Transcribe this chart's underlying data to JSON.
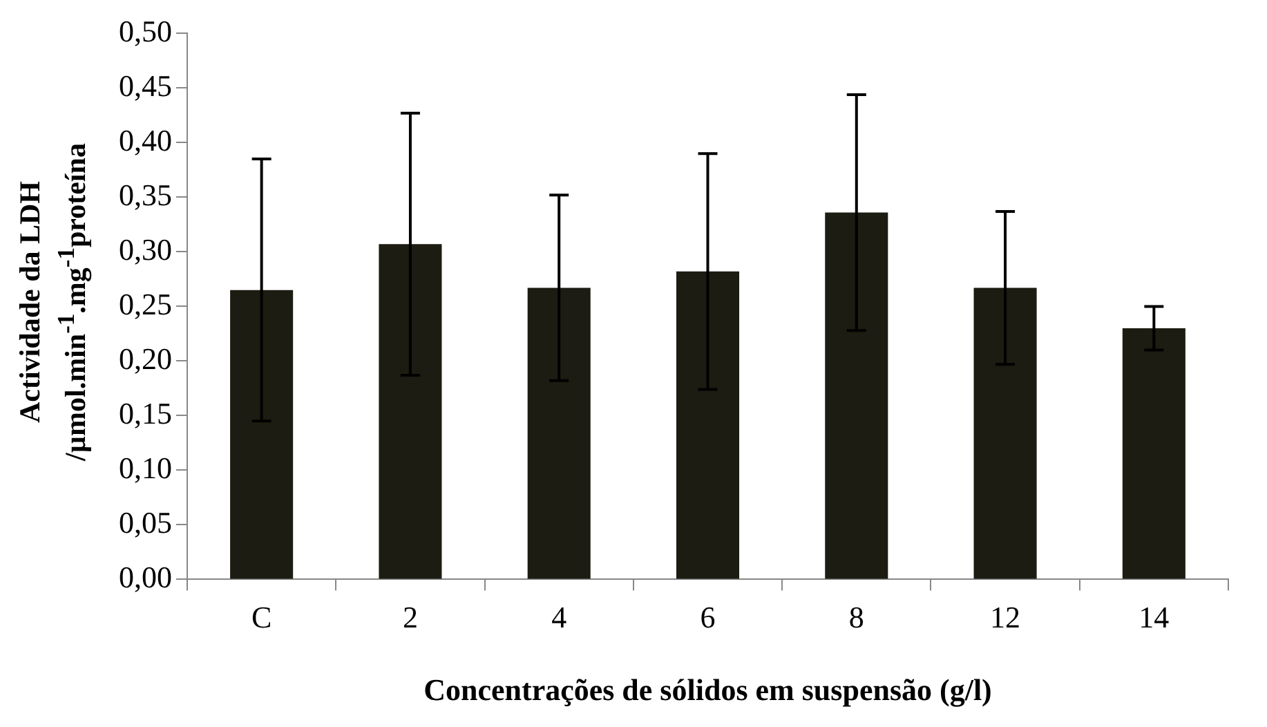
{
  "chart_data": {
    "type": "bar",
    "xlabel": "Concentrações de sólidos em suspensão (g/l)",
    "ylabel": "Actividade da LDH\n/µmol.min$^{-1}$.mg$^{-1}$proteína",
    "categories": [
      "C",
      "2",
      "4",
      "6",
      "8",
      "12",
      "14"
    ],
    "values": [
      0.265,
      0.307,
      0.267,
      0.282,
      0.336,
      0.267,
      0.23
    ],
    "errors": [
      0.12,
      0.12,
      0.085,
      0.108,
      0.108,
      0.07,
      0.02
    ],
    "color": "#1c1c12",
    "ylim": [
      0,
      0.5
    ],
    "yticks": [
      {
        "value": 0,
        "label": "0,00"
      },
      {
        "value": 0.05,
        "label": "0,05"
      },
      {
        "value": 0.1,
        "label": "0,10"
      },
      {
        "value": 0.15,
        "label": "0,15"
      },
      {
        "value": 0.2,
        "label": "0,20"
      },
      {
        "value": 0.25,
        "label": "0,25"
      },
      {
        "value": 0.3,
        "label": "0,30"
      },
      {
        "value": 0.35,
        "label": "0,35"
      },
      {
        "value": 0.4,
        "label": "0,40"
      },
      {
        "value": 0.45,
        "label": "0,45"
      },
      {
        "value": 0.5,
        "label": "0,50"
      }
    ],
    "grid": false,
    "legend": false
  }
}
